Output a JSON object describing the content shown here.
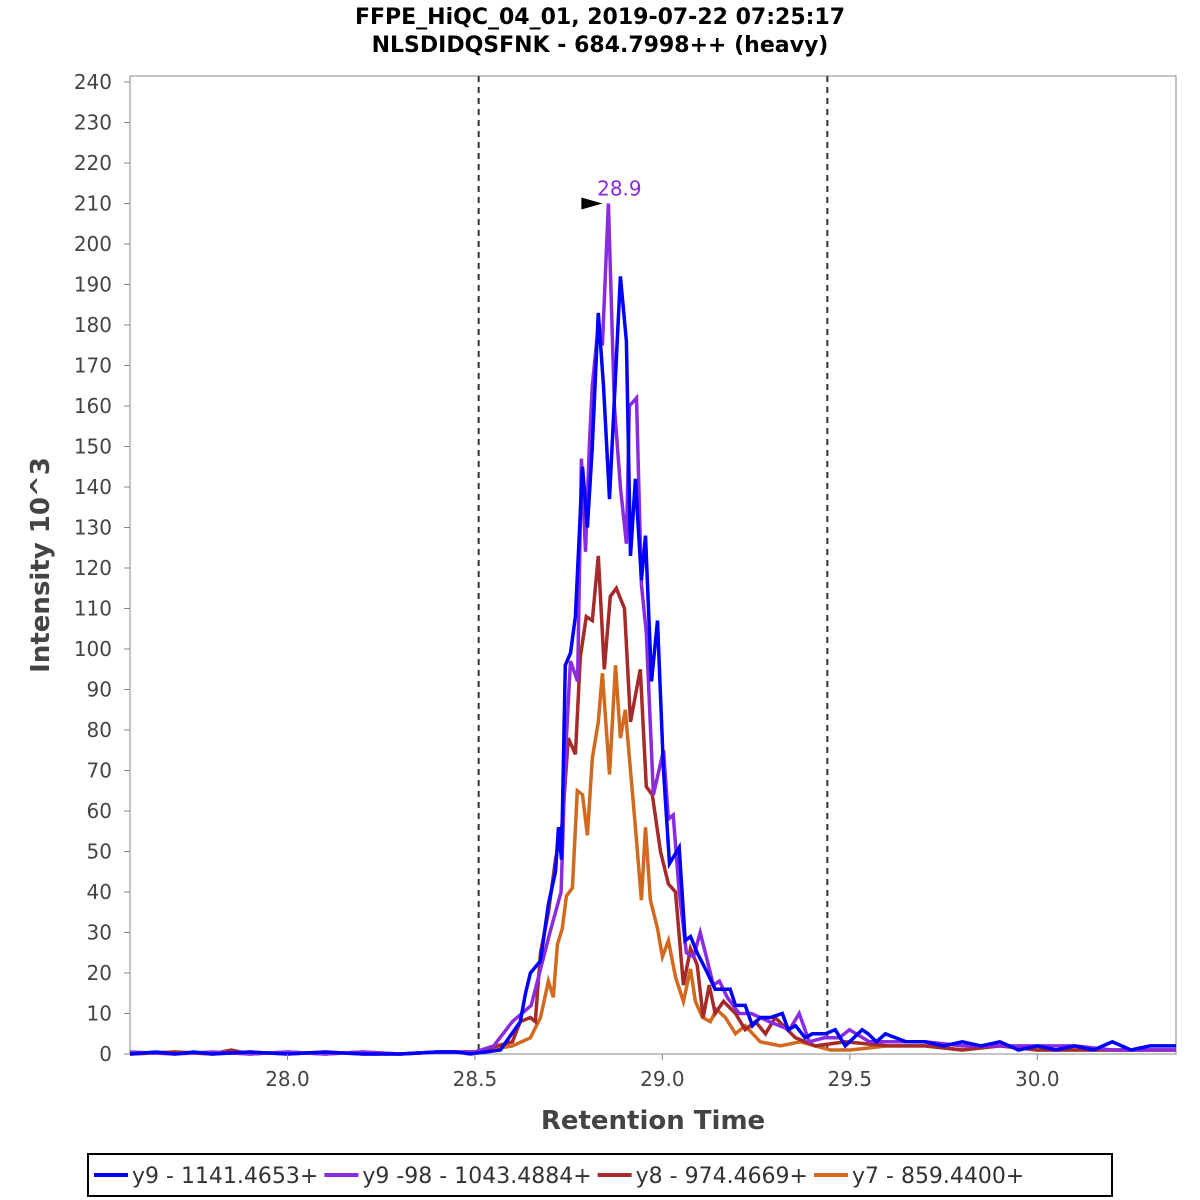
{
  "chart_data": {
    "type": "line",
    "title": "FFPE_HiQC_04_01, 2019-07-22 07:25:17",
    "subtitle": "NLSDIDQSFNK - 684.7998++ (heavy)",
    "xlabel": "Retention Time",
    "ylabel": "Intensity 10^3",
    "xlim": [
      27.58,
      30.37
    ],
    "ylim": [
      0,
      240
    ],
    "xticks": [
      "28.0",
      "28.5",
      "29.0",
      "29.5",
      "30.0"
    ],
    "xtick_values": [
      28.0,
      28.5,
      29.0,
      29.5,
      30.0
    ],
    "yticks": [
      "0",
      "10",
      "20",
      "30",
      "40",
      "50",
      "60",
      "70",
      "80",
      "90",
      "100",
      "110",
      "120",
      "130",
      "140",
      "150",
      "160",
      "170",
      "180",
      "190",
      "200",
      "210",
      "220",
      "230",
      "240"
    ],
    "grid": false,
    "legend_position": "bottom",
    "integration_boundaries": [
      28.51,
      29.44
    ],
    "peak_annotation": {
      "label": "28.9",
      "x": 28.856,
      "y": 210,
      "color": "#8a2be2"
    },
    "series": [
      {
        "name": "y9 - 1141.4653+",
        "color": "#0000ff",
        "x": [
          27.58,
          27.65,
          27.7,
          27.75,
          27.8,
          27.9,
          28.0,
          28.1,
          28.2,
          28.3,
          28.4,
          28.45,
          28.488,
          28.568,
          28.621,
          28.635,
          28.648,
          28.675,
          28.696,
          28.715,
          28.723,
          28.731,
          28.741,
          28.755,
          28.768,
          28.787,
          28.8,
          28.813,
          28.829,
          28.843,
          28.859,
          28.888,
          28.904,
          28.915,
          28.928,
          28.944,
          28.955,
          28.971,
          28.987,
          29.003,
          29.019,
          29.045,
          29.061,
          29.075,
          29.093,
          29.115,
          29.141,
          29.181,
          29.195,
          29.221,
          29.24,
          29.261,
          29.288,
          29.32,
          29.336,
          29.355,
          29.381,
          29.4,
          29.435,
          29.461,
          29.488,
          29.533,
          29.549,
          29.571,
          29.595,
          29.65,
          29.7,
          29.75,
          29.8,
          29.85,
          29.9,
          29.95,
          30.0,
          30.05,
          30.1,
          30.15,
          30.2,
          30.25,
          30.3,
          30.37
        ],
        "y": [
          0,
          0.5,
          0,
          0.5,
          0,
          0.5,
          0,
          0.5,
          0,
          0,
          0.5,
          0.5,
          0,
          1,
          8,
          15,
          20,
          23,
          37,
          45,
          56,
          48,
          96,
          99,
          108,
          145,
          130,
          150,
          183,
          165,
          137,
          192,
          176,
          123,
          142,
          117,
          128,
          92,
          107,
          70,
          47,
          51,
          28,
          29,
          25,
          21,
          16,
          16,
          12,
          12,
          7,
          9,
          9,
          10,
          6,
          7,
          4,
          5,
          5,
          6,
          2,
          6,
          5,
          3,
          5,
          3,
          3,
          2,
          3,
          2,
          3,
          1,
          2,
          1,
          2,
          1,
          3,
          1,
          2,
          2
        ]
      },
      {
        "name": "y9 -98 - 1043.4884+",
        "color": "#8a2be2",
        "x": [
          27.58,
          27.7,
          27.8,
          27.9,
          28.0,
          28.1,
          28.2,
          28.3,
          28.4,
          28.5,
          28.55,
          28.6,
          28.65,
          28.7,
          28.73,
          28.741,
          28.755,
          28.774,
          28.784,
          28.795,
          28.805,
          28.813,
          28.829,
          28.84,
          28.856,
          28.872,
          28.888,
          28.904,
          28.912,
          28.931,
          28.944,
          28.957,
          28.976,
          29.003,
          29.016,
          29.029,
          29.045,
          29.064,
          29.083,
          29.101,
          29.12,
          29.136,
          29.152,
          29.173,
          29.205,
          29.237,
          29.285,
          29.339,
          29.365,
          29.392,
          29.432,
          29.472,
          29.499,
          29.552,
          29.6,
          29.7,
          29.8,
          29.9,
          30.0,
          30.1,
          30.2,
          30.37
        ],
        "y": [
          0.5,
          0,
          0.5,
          0,
          0.5,
          0,
          0.5,
          0,
          0.5,
          0.5,
          2,
          8,
          12,
          30,
          40,
          73,
          97,
          92,
          147,
          124,
          150,
          165,
          180,
          175,
          210,
          160,
          140,
          126,
          160,
          162,
          116,
          104,
          64,
          75,
          58,
          59,
          40,
          25,
          24,
          30,
          23,
          17,
          18,
          14,
          10,
          10,
          8,
          6,
          10,
          3,
          4,
          4,
          6,
          3,
          3,
          3,
          2,
          2,
          2,
          2,
          1,
          1
        ]
      },
      {
        "name": "y8 - 974.4669+",
        "color": "#a52a2a",
        "x": [
          27.58,
          27.7,
          27.8,
          27.85,
          27.9,
          28.0,
          28.1,
          28.2,
          28.3,
          28.4,
          28.5,
          28.6,
          28.621,
          28.648,
          28.661,
          28.675,
          28.696,
          28.715,
          28.733,
          28.749,
          28.768,
          28.781,
          28.797,
          28.813,
          28.829,
          28.845,
          28.861,
          28.877,
          28.899,
          28.915,
          28.941,
          28.957,
          28.973,
          28.995,
          29.016,
          29.035,
          29.056,
          29.075,
          29.093,
          29.109,
          29.125,
          29.141,
          29.163,
          29.195,
          29.221,
          29.248,
          29.275,
          29.301,
          29.355,
          29.408,
          29.488,
          29.6,
          29.7,
          29.8,
          29.9,
          30.0,
          30.1,
          30.2,
          30.37
        ],
        "y": [
          0,
          0.5,
          0,
          1,
          0,
          0.5,
          0,
          0.5,
          0,
          0.5,
          0.5,
          3,
          8,
          9,
          8,
          25,
          35,
          48,
          57,
          78,
          74,
          98,
          108,
          107,
          123,
          95,
          113,
          115,
          110,
          82,
          95,
          66,
          64,
          50,
          42,
          40,
          17,
          26,
          22,
          9,
          17,
          10,
          13,
          10,
          6,
          8,
          5,
          9,
          4,
          2,
          3,
          2,
          2,
          1,
          2,
          1,
          1,
          1,
          1
        ]
      },
      {
        "name": "y7 - 859.4400+",
        "color": "#d2691e",
        "x": [
          27.58,
          27.7,
          27.8,
          27.9,
          28.0,
          28.1,
          28.2,
          28.3,
          28.4,
          28.5,
          28.6,
          28.648,
          28.675,
          28.696,
          28.709,
          28.72,
          28.733,
          28.744,
          28.76,
          28.773,
          28.787,
          28.8,
          28.813,
          28.829,
          28.84,
          28.859,
          28.875,
          28.888,
          28.901,
          28.915,
          28.928,
          28.944,
          28.955,
          28.968,
          28.987,
          29.0,
          29.016,
          29.035,
          29.056,
          29.075,
          29.088,
          29.107,
          29.128,
          29.144,
          29.168,
          29.195,
          29.221,
          29.261,
          29.315,
          29.368,
          29.448,
          29.501,
          29.6,
          29.7,
          29.8,
          29.9,
          30.0,
          30.1,
          30.2,
          30.37
        ],
        "y": [
          0,
          0.5,
          0,
          0.5,
          0,
          0.5,
          0,
          0,
          0.5,
          0.5,
          2,
          4,
          9,
          18,
          14,
          27,
          31,
          39,
          41,
          65,
          64,
          54,
          73,
          82,
          94,
          69,
          96,
          78,
          85,
          70,
          56,
          38,
          56,
          38,
          31,
          24,
          28,
          19,
          13,
          21,
          13,
          9,
          8,
          11,
          9,
          5,
          7,
          3,
          2,
          3,
          1,
          1,
          2,
          2,
          1,
          2,
          1,
          1,
          1,
          1
        ]
      }
    ]
  }
}
